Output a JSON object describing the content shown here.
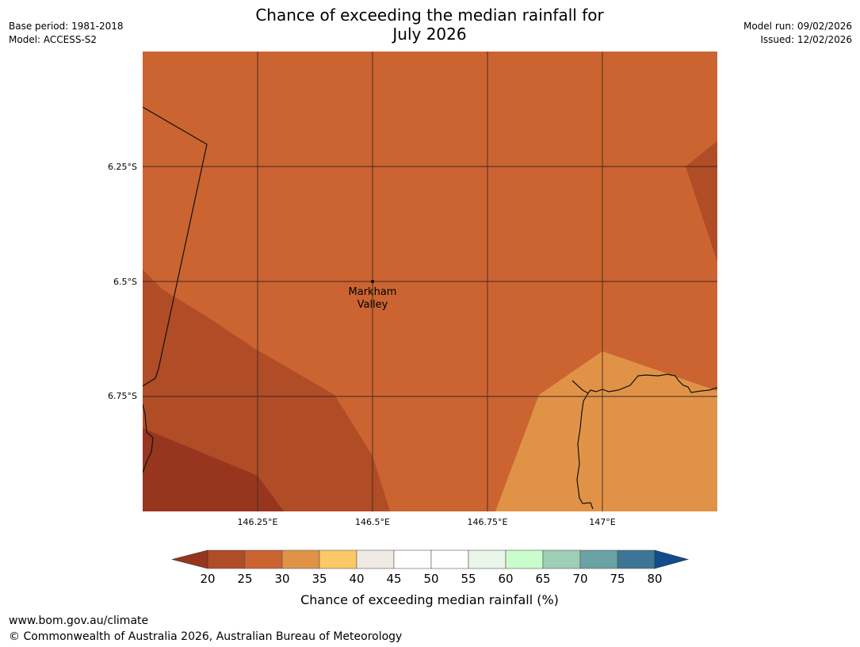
{
  "title": {
    "line1": "Chance of exceeding the median rainfall for",
    "line2": "July 2026"
  },
  "meta": {
    "base_period": "Base period: 1981-2018",
    "model": "Model: ACCESS-S2",
    "model_run": "Model run: 09/02/2026",
    "issued": "Issued: 12/02/2026"
  },
  "map": {
    "lat_labels": [
      "6.25°S",
      "6.5°S",
      "6.75°S"
    ],
    "lon_labels": [
      "146.25°E",
      "146.5°E",
      "146.75°E",
      "147°E"
    ],
    "place": {
      "line1": "Markham",
      "line2": "Valley"
    },
    "region_colors": {
      "below_20": "#98351f",
      "range_20_25": "#b04c26",
      "range_25_30": "#cb6431",
      "range_30_35": "#e09347"
    }
  },
  "legend": {
    "title": "Chance of exceeding median rainfall (%)",
    "ticks": [
      "20",
      "25",
      "30",
      "35",
      "40",
      "45",
      "50",
      "55",
      "60",
      "65",
      "70",
      "75",
      "80"
    ],
    "colors": [
      "#b04c26",
      "#cb6431",
      "#e09347",
      "#fdc966",
      "#efeae4",
      "#ffffff",
      "#ffffff",
      "#eaf5e9",
      "#c9fcca",
      "#9ccfb5",
      "#6ba2a4",
      "#3d7597"
    ],
    "under_color": "#98351f",
    "over_color": "#134c8a"
  },
  "footer": {
    "url": "www.bom.gov.au/climate",
    "copyright": "© Commonwealth of Australia 2026, Australian Bureau of Meteorology"
  }
}
